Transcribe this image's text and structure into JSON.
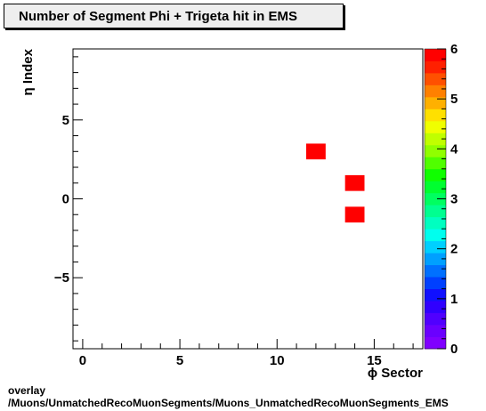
{
  "chart_data": {
    "type": "heatmap",
    "title": "Number of Segment Phi + Trigeta hit in EMS",
    "xlabel": "ϕ Sector",
    "ylabel": "η Index",
    "xlim": [
      -0.5,
      17.5
    ],
    "ylim": [
      -9.5,
      9.5
    ],
    "x_ticks": [
      "0",
      "5",
      "10",
      "15"
    ],
    "x_tick_values": [
      0,
      5,
      10,
      15
    ],
    "y_ticks": [
      "−5",
      "0",
      "5"
    ],
    "y_tick_values": [
      -5,
      0,
      5
    ],
    "z_range": [
      0,
      6
    ],
    "z_ticks": [
      "0",
      "1",
      "2",
      "3",
      "4",
      "5",
      "6"
    ],
    "cells": [
      {
        "x": 12,
        "y": 3,
        "z": 6
      },
      {
        "x": 14,
        "y": 1,
        "z": 6
      },
      {
        "x": 14,
        "y": -1,
        "z": 6
      }
    ],
    "palette": [
      "#8000ff",
      "#6a00ff",
      "#5000ff",
      "#3000ff",
      "#1010ff",
      "#0040ff",
      "#0070ff",
      "#00a0ff",
      "#00d0ff",
      "#00ffee",
      "#00ffc0",
      "#00ff90",
      "#00ff60",
      "#00ff30",
      "#10ff00",
      "#50ff00",
      "#90ff00",
      "#c0ff00",
      "#f0ff00",
      "#ffe000",
      "#ffb000",
      "#ff8000",
      "#ff5000",
      "#ff2000",
      "#ff0000"
    ],
    "grid": false
  },
  "footer": {
    "line1": "overlay",
    "line2": "/Muons/UnmatchedRecoMuonSegments/Muons_UnmatchedRecoMuonSegments_EMS"
  }
}
